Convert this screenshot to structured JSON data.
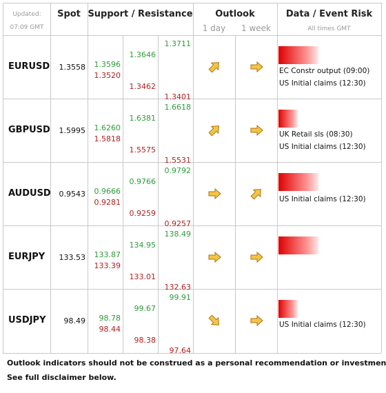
{
  "header": {
    "updated_label": "Updated:",
    "updated_time": "07:09 GMT",
    "spot": "Spot",
    "support_resistance": "Support / Resistance",
    "outlook": "Outlook",
    "outlook_1day": "1 day",
    "outlook_1week": "1 week",
    "data_event_risk": "Data / Event Risk",
    "all_times": "All times GMT"
  },
  "rows": [
    {
      "pair": "EURUSD",
      "spot": "1.3558",
      "r3": "1.3711",
      "r2": "1.3646",
      "r1": "1.3596",
      "s1": "1.3520",
      "s2": "1.3462",
      "s3": "1.3401",
      "events": [
        "EC Constr output (09:00)",
        "US Initial claims (12:30)"
      ]
    },
    {
      "pair": "GBPUSD",
      "spot": "1.5995",
      "r3": "1.6618",
      "r2": "1.6381",
      "r1": "1.6260",
      "s1": "1.5818",
      "s2": "1.5575",
      "s3": "1.5531",
      "events": [
        "UK Retail sls (08:30)",
        "US Initial claims (12:30)"
      ]
    },
    {
      "pair": "AUDUSD",
      "spot": "0.9543",
      "r3": "0.9792",
      "r2": "0.9766",
      "r1": "0.9666",
      "s1": "0.9281",
      "s2": "0.9259",
      "s3": "0.9257",
      "events": [
        "US Initial claims (12:30)"
      ]
    },
    {
      "pair": "EURJPY",
      "spot": "133.53",
      "r3": "138.49",
      "r2": "134.95",
      "r1": "133.87",
      "s1": "133.39",
      "s2": "133.01",
      "s3": "132.63",
      "events": []
    },
    {
      "pair": "USDJPY",
      "spot": "98.49",
      "r3": "99.91",
      "r2": "99.67",
      "r1": "98.78",
      "s1": "98.44",
      "s2": "98.38",
      "s3": "97.64",
      "events": [
        "US Initial claims (12:30)"
      ]
    }
  ],
  "footer": [
    "Outlook indicators should not be construed as a personal recommendation or investment advice.",
    "See full disclaimer below."
  ]
}
